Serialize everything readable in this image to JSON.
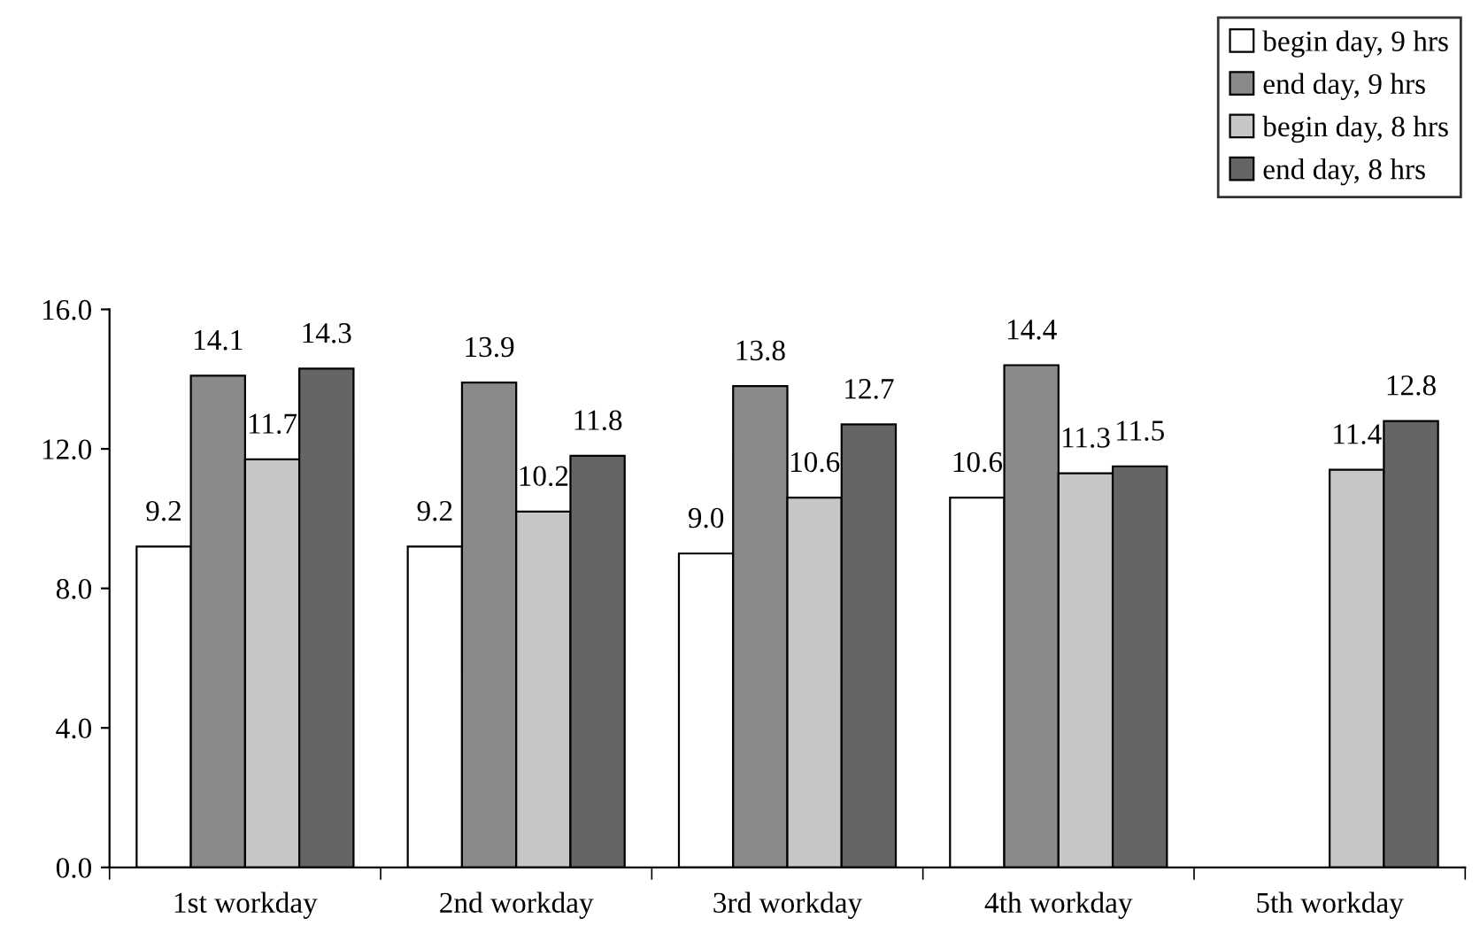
{
  "chart_data": {
    "type": "bar",
    "categories": [
      "1st workday",
      "2nd workday",
      "3rd workday",
      "4th workday",
      "5th workday"
    ],
    "series": [
      {
        "name": "begin day, 9 hrs",
        "color": "#ffffff",
        "values": [
          9.2,
          9.2,
          9.0,
          10.6,
          null
        ],
        "value_labels": [
          "9.2",
          "9.2",
          "9.0",
          "10.6",
          null
        ]
      },
      {
        "name": "end day, 9 hrs",
        "color": "#8a8a8a",
        "values": [
          14.1,
          13.9,
          13.8,
          14.4,
          null
        ],
        "value_labels": [
          "14.1",
          "13.9",
          "13.8",
          "14.4",
          null
        ]
      },
      {
        "name": "begin day, 8 hrs",
        "color": "#c6c6c6",
        "values": [
          11.7,
          10.2,
          10.6,
          11.3,
          11.4
        ],
        "value_labels": [
          "11.7",
          "10.2",
          "10.6",
          "11.3",
          "11.4"
        ]
      },
      {
        "name": "end day, 8 hrs",
        "color": "#656565",
        "values": [
          14.3,
          11.8,
          12.7,
          11.5,
          12.8
        ],
        "value_labels": [
          "14.3",
          "11.8",
          "12.7",
          "11.5",
          "12.8"
        ]
      }
    ],
    "ylim": [
      0,
      16
    ],
    "yticks": [
      {
        "value": 0,
        "label": "0.0"
      },
      {
        "value": 4,
        "label": "4.0"
      },
      {
        "value": 8,
        "label": "8.0"
      },
      {
        "value": 12,
        "label": "12.0"
      },
      {
        "value": 16,
        "label": "16.0"
      }
    ],
    "grid": false,
    "legend": "top right"
  }
}
